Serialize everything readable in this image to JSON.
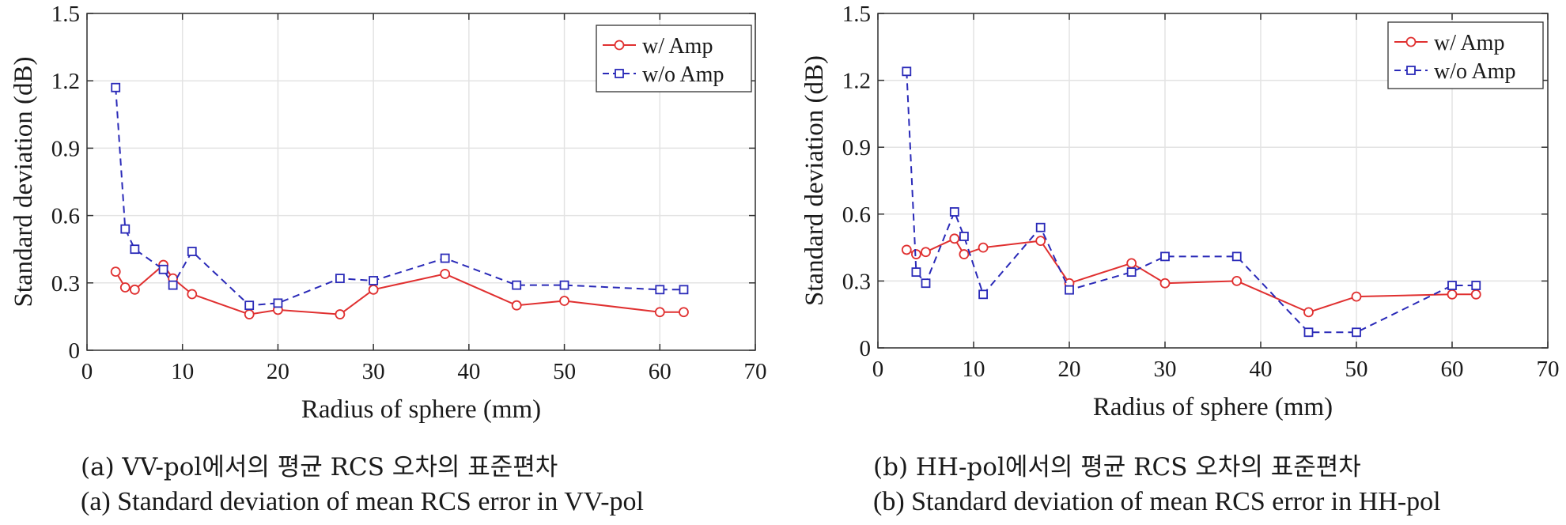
{
  "charts": [
    {
      "caption_ko": "(a) VV-pol에서의 평균 RCS 오차의 표준편차",
      "caption_en": "(a) Standard deviation of mean RCS error in VV-pol"
    },
    {
      "caption_ko": "(b) HH-pol에서의 평균 RCS 오차의 표준편차",
      "caption_en": "(b) Standard deviation of mean RCS error in HH-pol"
    }
  ],
  "chart_data": [
    {
      "type": "line",
      "title": "",
      "xlabel": "Radius of sphere (mm)",
      "ylabel": "Standard deviation (dB)",
      "xlim": [
        0,
        70
      ],
      "ylim": [
        0,
        1.5
      ],
      "xticks": [
        0,
        10,
        20,
        30,
        40,
        50,
        60,
        70
      ],
      "yticks": [
        0,
        0.3,
        0.6,
        0.9,
        1.2,
        1.5
      ],
      "xtick_labels": [
        "0",
        "10",
        "20",
        "30",
        "40",
        "50",
        "60",
        "70"
      ],
      "ytick_labels": [
        "0",
        "0.3",
        "0.6",
        "0.9",
        "1.2",
        "1.5"
      ],
      "grid": true,
      "legend_position": "top-right",
      "series": [
        {
          "name": "w/ Amp",
          "color": "#e03030",
          "marker": "circle",
          "line": "solid",
          "x": [
            3,
            4,
            5,
            8,
            9,
            11,
            17,
            20,
            26.5,
            30,
            37.5,
            45,
            50,
            60,
            62.5
          ],
          "y": [
            0.35,
            0.28,
            0.27,
            0.38,
            0.32,
            0.25,
            0.16,
            0.18,
            0.16,
            0.27,
            0.34,
            0.2,
            0.22,
            0.17,
            0.17
          ]
        },
        {
          "name": "w/o Amp",
          "color": "#2a2ab8",
          "marker": "square",
          "line": "dashed",
          "x": [
            3,
            4,
            5,
            8,
            9,
            11,
            17,
            20,
            26.5,
            30,
            37.5,
            45,
            50,
            60,
            62.5
          ],
          "y": [
            1.17,
            0.54,
            0.45,
            0.36,
            0.29,
            0.44,
            0.2,
            0.21,
            0.32,
            0.31,
            0.41,
            0.29,
            0.29,
            0.27,
            0.27
          ]
        }
      ]
    },
    {
      "type": "line",
      "title": "",
      "xlabel": "Radius of sphere (mm)",
      "ylabel": "Standard deviation (dB)",
      "xlim": [
        0,
        70
      ],
      "ylim": [
        0,
        1.5
      ],
      "xticks": [
        0,
        10,
        20,
        30,
        40,
        50,
        60,
        70
      ],
      "yticks": [
        0,
        0.3,
        0.6,
        0.9,
        1.2,
        1.5
      ],
      "xtick_labels": [
        "0",
        "10",
        "20",
        "30",
        "40",
        "50",
        "60",
        "70"
      ],
      "ytick_labels": [
        "0",
        "0.3",
        "0.6",
        "0.9",
        "1.2",
        "1.5"
      ],
      "grid": true,
      "legend_position": "top-right",
      "series": [
        {
          "name": "w/ Amp",
          "color": "#e03030",
          "marker": "circle",
          "line": "solid",
          "x": [
            3,
            4,
            5,
            8,
            9,
            11,
            17,
            20,
            26.5,
            30,
            37.5,
            45,
            50,
            60,
            62.5
          ],
          "y": [
            0.44,
            0.42,
            0.43,
            0.49,
            0.42,
            0.45,
            0.48,
            0.29,
            0.38,
            0.29,
            0.3,
            0.16,
            0.23,
            0.24,
            0.24
          ]
        },
        {
          "name": "w/o Amp",
          "color": "#2a2ab8",
          "marker": "square",
          "line": "dashed",
          "x": [
            3,
            4,
            5,
            8,
            9,
            11,
            17,
            20,
            26.5,
            30,
            37.5,
            45,
            50,
            60,
            62.5
          ],
          "y": [
            1.24,
            0.34,
            0.29,
            0.61,
            0.5,
            0.24,
            0.54,
            0.26,
            0.34,
            0.41,
            0.41,
            0.07,
            0.07,
            0.28,
            0.28
          ]
        }
      ]
    }
  ]
}
